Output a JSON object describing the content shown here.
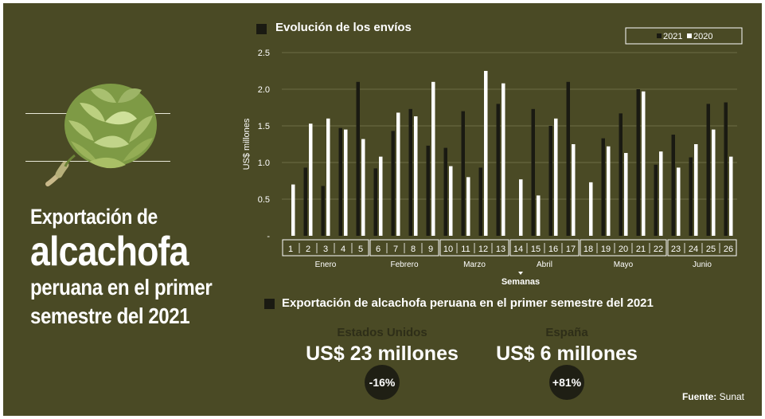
{
  "headline": {
    "line1": "Exportación de",
    "line2": "alcachofa",
    "line3": "peruana en el primer",
    "line4": "semestre del 2021"
  },
  "chart_section_title": "Evolución de los envíos",
  "summary_section_title": "Exportación de alcachofa peruana en el primer semestre del 2021",
  "colors": {
    "background": "#4a4a25",
    "bar_2021": "#1a1a12",
    "bar_2020": "#ffffff",
    "muted_text": "#2e2e18",
    "badge": "#1f1f14"
  },
  "chart_data": {
    "type": "bar",
    "title": "Evolución de los envíos",
    "ylabel": "US$ millones",
    "xlabel": "Semanas",
    "ylim": [
      0,
      2.5
    ],
    "yticks": [
      "-",
      "0.5",
      "1.0",
      "1.5",
      "2.0",
      "2.5"
    ],
    "categories": [
      "1",
      "2",
      "3",
      "4",
      "5",
      "6",
      "7",
      "8",
      "9",
      "10",
      "11",
      "12",
      "13",
      "14",
      "15",
      "16",
      "17",
      "18",
      "19",
      "20",
      "21",
      "22",
      "23",
      "24",
      "25",
      "26"
    ],
    "series": [
      {
        "name": "2021",
        "color": "#1a1a12",
        "values": [
          0,
          0.93,
          0.68,
          1.47,
          2.1,
          0.92,
          1.43,
          1.73,
          1.23,
          1.2,
          1.7,
          0.93,
          1.8,
          0,
          1.73,
          1.5,
          2.1,
          0,
          1.33,
          1.67,
          2.0,
          0.97,
          1.38,
          1.07,
          1.8,
          1.82
        ]
      },
      {
        "name": "2020",
        "color": "#ffffff",
        "values": [
          0.7,
          1.53,
          1.6,
          1.45,
          1.32,
          1.08,
          1.68,
          1.63,
          2.1,
          0.95,
          0.8,
          2.25,
          2.08,
          0.77,
          0.55,
          1.6,
          1.25,
          0.73,
          1.22,
          1.13,
          1.97,
          1.15,
          0.93,
          1.25,
          1.45,
          1.08
        ]
      }
    ],
    "month_groups": [
      {
        "label": "Enero",
        "weeks": [
          "1",
          "2",
          "3",
          "4",
          "5"
        ]
      },
      {
        "label": "Febrero",
        "weeks": [
          "6",
          "7",
          "8",
          "9"
        ]
      },
      {
        "label": "Marzo",
        "weeks": [
          "10",
          "11",
          "12",
          "13"
        ]
      },
      {
        "label": "Abril",
        "weeks": [
          "14",
          "15",
          "16",
          "17"
        ]
      },
      {
        "label": "Mayo",
        "weeks": [
          "18",
          "19",
          "20",
          "21",
          "22"
        ]
      },
      {
        "label": "Junio",
        "weeks": [
          "23",
          "24",
          "25",
          "26"
        ]
      }
    ],
    "legend": [
      "2021",
      "2020"
    ],
    "legend_position": "top-right"
  },
  "summary": [
    {
      "country": "Estados Unidos",
      "amount": "US$ 23 millones",
      "change": "-16%"
    },
    {
      "country": "España",
      "amount": "US$ 6 millones",
      "change": "+81%"
    }
  ],
  "source": {
    "label": "Fuente:",
    "value": "Sunat"
  }
}
